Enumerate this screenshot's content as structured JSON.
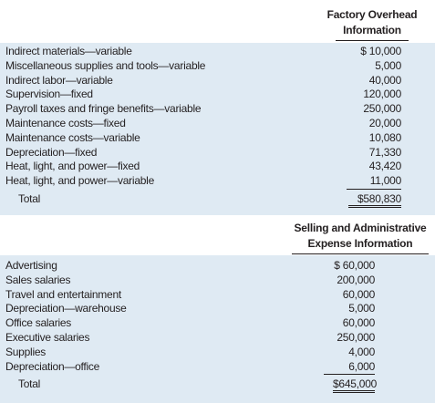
{
  "factory_overhead": {
    "header_line1": "Factory Overhead",
    "header_line2": "Information",
    "rows": [
      {
        "label": "Indirect materials—variable",
        "amount": "$ 10,000"
      },
      {
        "label": "Miscellaneous supplies and tools—variable",
        "amount": "5,000"
      },
      {
        "label": "Indirect labor—variable",
        "amount": "40,000"
      },
      {
        "label": "Supervision—fixed",
        "amount": "120,000"
      },
      {
        "label": "Payroll taxes and fringe benefits—variable",
        "amount": "250,000"
      },
      {
        "label": "Maintenance costs—fixed",
        "amount": "20,000"
      },
      {
        "label": "Maintenance costs—variable",
        "amount": "10,080"
      },
      {
        "label": "Depreciation—fixed",
        "amount": "71,330"
      },
      {
        "label": "Heat, light, and power—fixed",
        "amount": "43,420"
      },
      {
        "label": "Heat, light, and power—variable",
        "amount": "11,000"
      }
    ],
    "total_label": "Total",
    "total_amount": "$580,830"
  },
  "selling_admin": {
    "header_line1": "Selling and Administrative",
    "header_line2": "Expense Information",
    "rows": [
      {
        "label": "Advertising",
        "amount": "$ 60,000"
      },
      {
        "label": "Sales salaries",
        "amount": "200,000"
      },
      {
        "label": "Travel and entertainment",
        "amount": "60,000"
      },
      {
        "label": "Depreciation—warehouse",
        "amount": "5,000"
      },
      {
        "label": "Office salaries",
        "amount": "60,000"
      },
      {
        "label": "Executive salaries",
        "amount": "250,000"
      },
      {
        "label": "Supplies",
        "amount": "4,000"
      },
      {
        "label": "Depreciation—office",
        "amount": "6,000"
      }
    ],
    "total_label": "Total",
    "total_amount": "$645,000"
  }
}
